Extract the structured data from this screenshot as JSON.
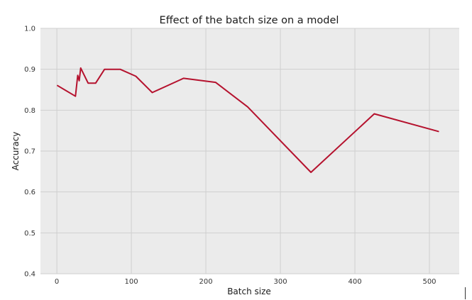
{
  "chart_data": {
    "type": "line",
    "title": "Effect of the batch size on a model",
    "xlabel": "Batch size",
    "ylabel": "Accuracy",
    "xlim": [
      -22,
      540
    ],
    "ylim": [
      0.4,
      1.0
    ],
    "xticks": [
      0,
      100,
      200,
      300,
      400,
      500
    ],
    "yticks": [
      0.4,
      0.5,
      0.6,
      0.7,
      0.8,
      0.9,
      1.0
    ],
    "ytick_labels": [
      "0.4",
      "0.5",
      "0.6",
      "0.7",
      "0.8",
      "0.9",
      "1.0"
    ],
    "grid": true,
    "background_color": "#ebebeb",
    "series": [
      {
        "color": "#b5122e",
        "x": [
          1,
          25,
          28,
          30,
          32,
          42,
          52,
          64,
          85,
          106,
          128,
          170,
          213,
          256,
          341,
          426,
          512
        ],
        "y": [
          0.86,
          0.834,
          0.885,
          0.872,
          0.903,
          0.866,
          0.866,
          0.9,
          0.9,
          0.883,
          0.843,
          0.878,
          0.868,
          0.808,
          0.648,
          0.791,
          0.748
        ]
      }
    ]
  }
}
